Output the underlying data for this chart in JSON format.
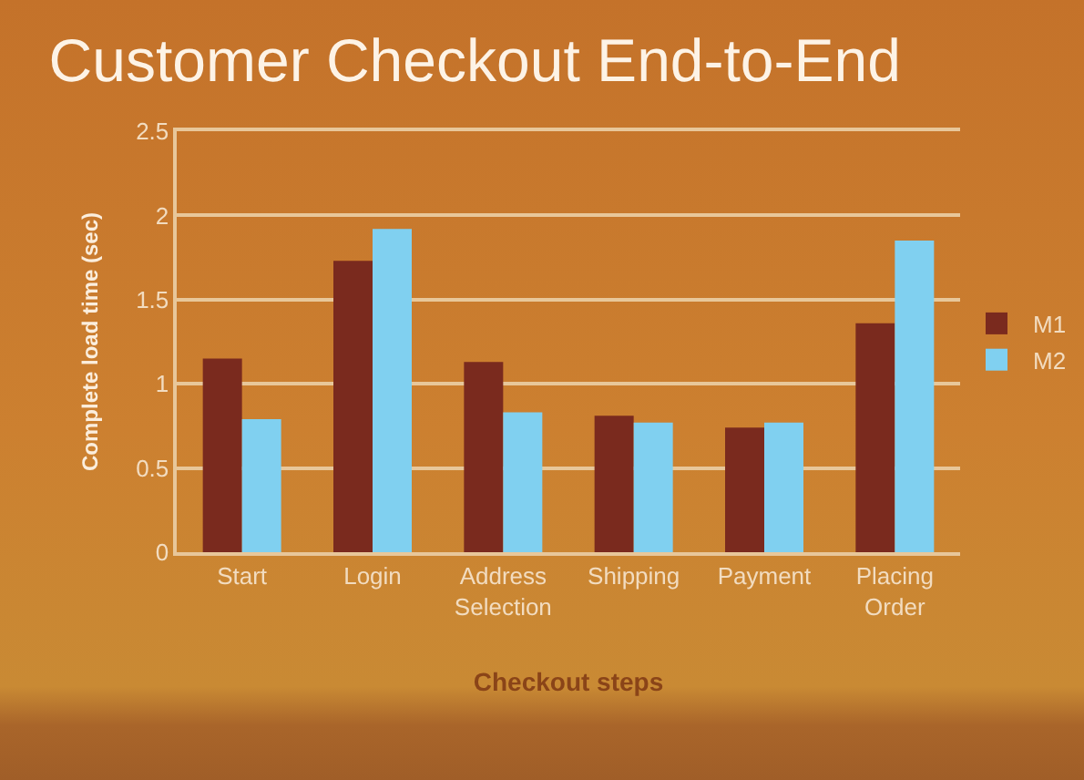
{
  "chart_data": {
    "type": "bar",
    "title": "Customer Checkout End-to-End",
    "xlabel": "Checkout steps",
    "ylabel": "Complete load time (sec)",
    "categories": [
      "Start",
      "Login",
      "Address Selection",
      "Shipping",
      "Payment",
      "Placing Order"
    ],
    "series": [
      {
        "name": "M1",
        "color": "#7a2a1e",
        "values": [
          1.15,
          1.73,
          1.13,
          0.81,
          0.74,
          1.36
        ]
      },
      {
        "name": "M2",
        "color": "#80d0f0",
        "values": [
          0.79,
          1.92,
          0.83,
          0.77,
          0.77,
          1.85
        ]
      }
    ],
    "ylim": [
      0,
      2.5
    ],
    "yticks": [
      0,
      0.5,
      1,
      1.5,
      2,
      2.5
    ],
    "grid": "y",
    "legend": "right"
  }
}
